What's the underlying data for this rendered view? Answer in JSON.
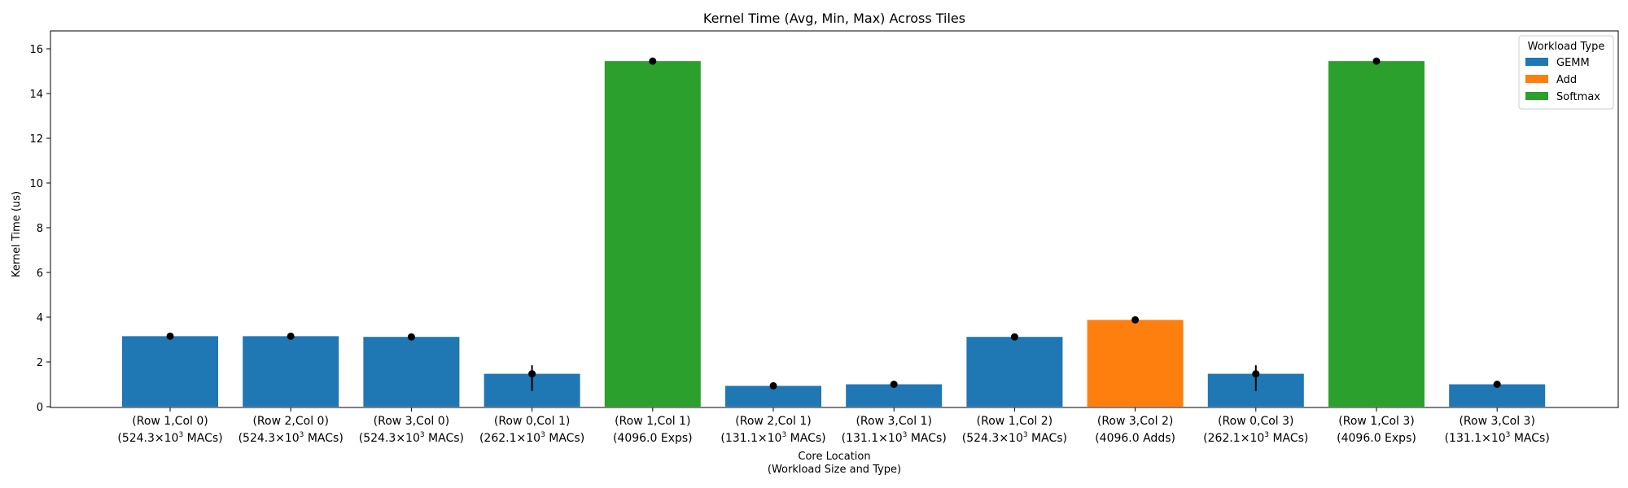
{
  "chart_data": {
    "type": "bar",
    "title": "Kernel Time (Avg, Min, Max) Across Tiles",
    "xlabel": [
      "Core Location",
      "(Workload Size and Type)"
    ],
    "ylabel": "Kernel Time (us)",
    "ylim": [
      0,
      16.2
    ],
    "yticks": [
      0,
      2,
      4,
      6,
      8,
      10,
      12,
      14,
      16
    ],
    "grid": false,
    "legend": {
      "title": "Workload Type",
      "placement": "top-right",
      "entries": [
        {
          "name": "GEMM",
          "color": "#1f77b4"
        },
        {
          "name": "Add",
          "color": "#ff7f0e"
        },
        {
          "name": "Softmax",
          "color": "#2ca02c"
        }
      ]
    },
    "categories": [
      {
        "line1": "(Row 1,Col 0)",
        "base": "(524.3×10",
        "exp": "3",
        "tail": " MACs)",
        "type": "GEMM",
        "avg": 3.15,
        "min": 3.1,
        "max": 3.2
      },
      {
        "line1": "(Row 2,Col 0)",
        "base": "(524.3×10",
        "exp": "3",
        "tail": " MACs)",
        "type": "GEMM",
        "avg": 3.15,
        "min": 3.1,
        "max": 3.2
      },
      {
        "line1": "(Row 3,Col 0)",
        "base": "(524.3×10",
        "exp": "3",
        "tail": " MACs)",
        "type": "GEMM",
        "avg": 3.12,
        "min": 3.07,
        "max": 3.17
      },
      {
        "line1": "(Row 0,Col 1)",
        "base": "(262.1×10",
        "exp": "3",
        "tail": " MACs)",
        "type": "GEMM",
        "avg": 1.47,
        "min": 0.7,
        "max": 1.85
      },
      {
        "line1": "(Row 1,Col 1)",
        "base": "(4096.0 Exps)",
        "exp": "",
        "tail": "",
        "type": "Softmax",
        "avg": 15.45,
        "min": 15.4,
        "max": 15.5
      },
      {
        "line1": "(Row 2,Col 1)",
        "base": "(131.1×10",
        "exp": "3",
        "tail": " MACs)",
        "type": "GEMM",
        "avg": 0.93,
        "min": 0.9,
        "max": 0.96
      },
      {
        "line1": "(Row 3,Col 1)",
        "base": "(131.1×10",
        "exp": "3",
        "tail": " MACs)",
        "type": "GEMM",
        "avg": 1.0,
        "min": 0.97,
        "max": 1.03
      },
      {
        "line1": "(Row 1,Col 2)",
        "base": "(524.3×10",
        "exp": "3",
        "tail": " MACs)",
        "type": "GEMM",
        "avg": 3.12,
        "min": 3.07,
        "max": 3.17
      },
      {
        "line1": "(Row 3,Col 2)",
        "base": "(4096.0 Adds)",
        "exp": "",
        "tail": "",
        "type": "Add",
        "avg": 3.88,
        "min": 3.84,
        "max": 3.92
      },
      {
        "line1": "(Row 0,Col 3)",
        "base": "(262.1×10",
        "exp": "3",
        "tail": " MACs)",
        "type": "GEMM",
        "avg": 1.47,
        "min": 0.7,
        "max": 1.85
      },
      {
        "line1": "(Row 1,Col 3)",
        "base": "(4096.0 Exps)",
        "exp": "",
        "tail": "",
        "type": "Softmax",
        "avg": 15.45,
        "min": 15.4,
        "max": 15.5
      },
      {
        "line1": "(Row 3,Col 3)",
        "base": "(131.1×10",
        "exp": "3",
        "tail": " MACs)",
        "type": "GEMM",
        "avg": 1.0,
        "min": 0.97,
        "max": 1.03
      }
    ]
  }
}
